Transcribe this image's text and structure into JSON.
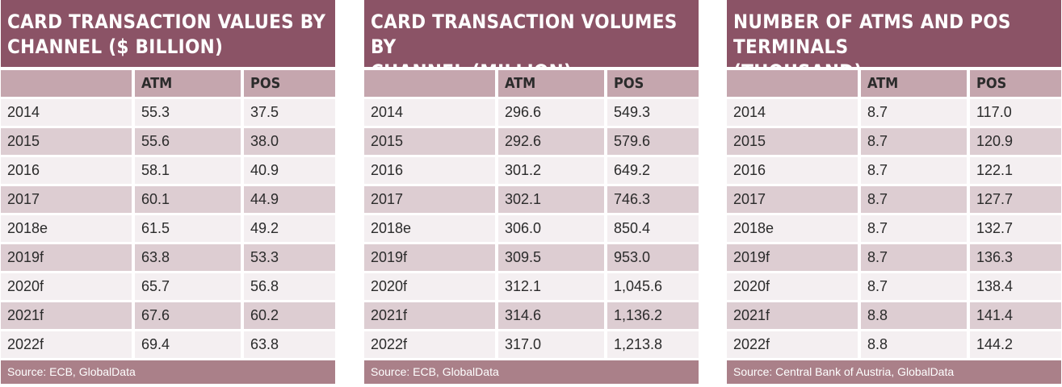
{
  "chart_data": [
    {
      "type": "table",
      "title": "Card transaction values by\nchannel ($ billion)",
      "columns": [
        "",
        "ATM",
        "POS"
      ],
      "rows": [
        [
          "2014",
          "55.3",
          "37.5"
        ],
        [
          "2015",
          "55.6",
          "38.0"
        ],
        [
          "2016",
          "58.1",
          "40.9"
        ],
        [
          "2017",
          "60.1",
          "44.9"
        ],
        [
          "2018e",
          "61.5",
          "49.2"
        ],
        [
          "2019f",
          "63.8",
          "53.3"
        ],
        [
          "2020f",
          "65.7",
          "56.8"
        ],
        [
          "2021f",
          "67.6",
          "60.2"
        ],
        [
          "2022f",
          "69.4",
          "63.8"
        ]
      ],
      "source": "Source: ECB, GlobalData"
    },
    {
      "type": "table",
      "title": "Card transaction volumes by\nchannel (million)",
      "columns": [
        "",
        "ATM",
        "POS"
      ],
      "rows": [
        [
          "2014",
          "296.6",
          "549.3"
        ],
        [
          "2015",
          "292.6",
          "579.6"
        ],
        [
          "2016",
          "301.2",
          "649.2"
        ],
        [
          "2017",
          "302.1",
          "746.3"
        ],
        [
          "2018e",
          "306.0",
          "850.4"
        ],
        [
          "2019f",
          "309.5",
          "953.0"
        ],
        [
          "2020f",
          "312.1",
          "1,045.6"
        ],
        [
          "2021f",
          "314.6",
          "1,136.2"
        ],
        [
          "2022f",
          "317.0",
          "1,213.8"
        ]
      ],
      "source": "Source: ECB, GlobalData"
    },
    {
      "type": "table",
      "title": "Number of ATMs and POS terminals\n(thousand)",
      "columns": [
        "",
        "ATM",
        "POS"
      ],
      "rows": [
        [
          "2014",
          "8.7",
          "117.0"
        ],
        [
          "2015",
          "8.7",
          "120.9"
        ],
        [
          "2016",
          "8.7",
          "122.1"
        ],
        [
          "2017",
          "8.7",
          "127.7"
        ],
        [
          "2018e",
          "8.7",
          "132.7"
        ],
        [
          "2019f",
          "8.7",
          "136.3"
        ],
        [
          "2020f",
          "8.7",
          "138.4"
        ],
        [
          "2021f",
          "8.8",
          "141.4"
        ],
        [
          "2022f",
          "8.8",
          "144.2"
        ]
      ],
      "source": "Source: Central Bank of Austria, GlobalData"
    }
  ],
  "colors": {
    "header_bg": "#8b5366",
    "column_header_bg": "#c5a6ae",
    "row_light": "#f4eff1",
    "row_dark": "#ddcdd2",
    "source_bg": "#aa8089"
  }
}
